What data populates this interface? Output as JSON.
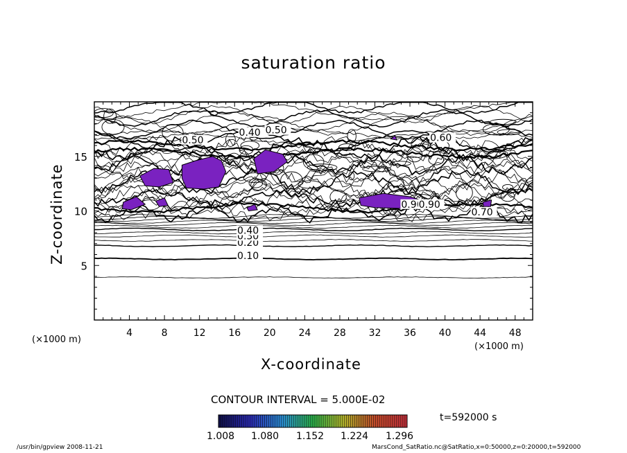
{
  "chart_data": {
    "type": "contour",
    "title": "saturation ratio",
    "xlabel": "X-coordinate",
    "ylabel": "Z-coordinate",
    "x_unit": "(×1000 m)",
    "y_unit": "(×1000 m)",
    "xlim": [
      0,
      50
    ],
    "ylim": [
      0,
      20
    ],
    "xticks": [
      "4",
      "8",
      "12",
      "16",
      "20",
      "24",
      "28",
      "32",
      "36",
      "40",
      "44",
      "48"
    ],
    "yticks": [
      "5",
      "10",
      "15"
    ],
    "contour_interval_label": "CONTOUR INTERVAL = 5.000E-02",
    "contour_labels": [
      "0.10",
      "0.20",
      "0.30",
      "0.40",
      "0.50",
      "0.40",
      "0.60",
      "0.90",
      "0.90",
      "0.70",
      "0.50"
    ],
    "shaded_threshold": 1.0,
    "colorbar_ticks": [
      "1.008",
      "1.080",
      "1.152",
      "1.224",
      "1.296"
    ],
    "colorbar_colors": [
      "#10104a",
      "#2a2ab0",
      "#2a8ad0",
      "#2ab04a",
      "#b0b02a",
      "#c04a2a",
      "#c0303a"
    ],
    "shade_color": "#7a22c0",
    "time_label": "t=592000 s"
  },
  "footer": {
    "left": "/usr/bin/gpview 2008-11-21",
    "right": "MarsCond_SatRatio.nc@SatRatio,x=0:50000,z=0:20000,t=592000"
  }
}
